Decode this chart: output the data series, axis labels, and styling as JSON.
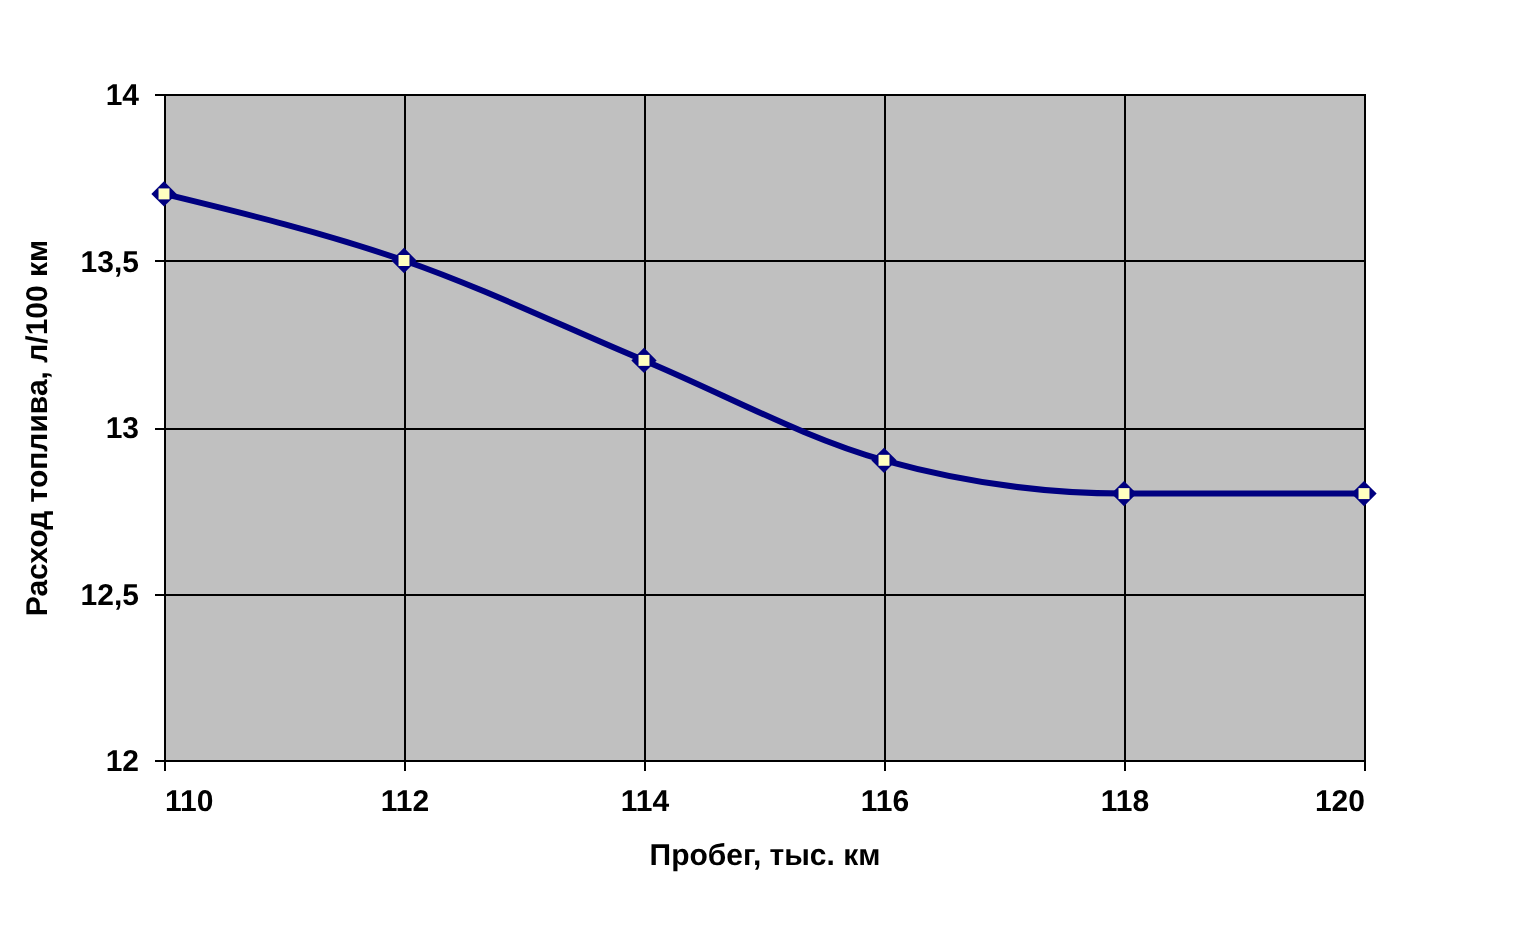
{
  "chart_data": {
    "type": "line",
    "xlabel": "Пробег, тыс. км",
    "ylabel": "Расход топлива, л/100 км",
    "x": [
      110,
      112,
      114,
      116,
      118,
      120
    ],
    "series": [
      {
        "color": "#000080",
        "values": [
          13.7,
          13.5,
          13.2,
          12.9,
          12.8,
          12.8
        ]
      }
    ],
    "xlim": [
      110,
      120
    ],
    "xticks": [
      110,
      112,
      114,
      116,
      118,
      120
    ],
    "ylim": [
      12,
      14
    ],
    "yticks": [
      12,
      {
        "value": 12.5,
        "label": "12,5"
      },
      13,
      {
        "value": 13.5,
        "label": "13,5"
      },
      14
    ],
    "grid": true,
    "marker": "diamond",
    "line_style": "solid"
  }
}
